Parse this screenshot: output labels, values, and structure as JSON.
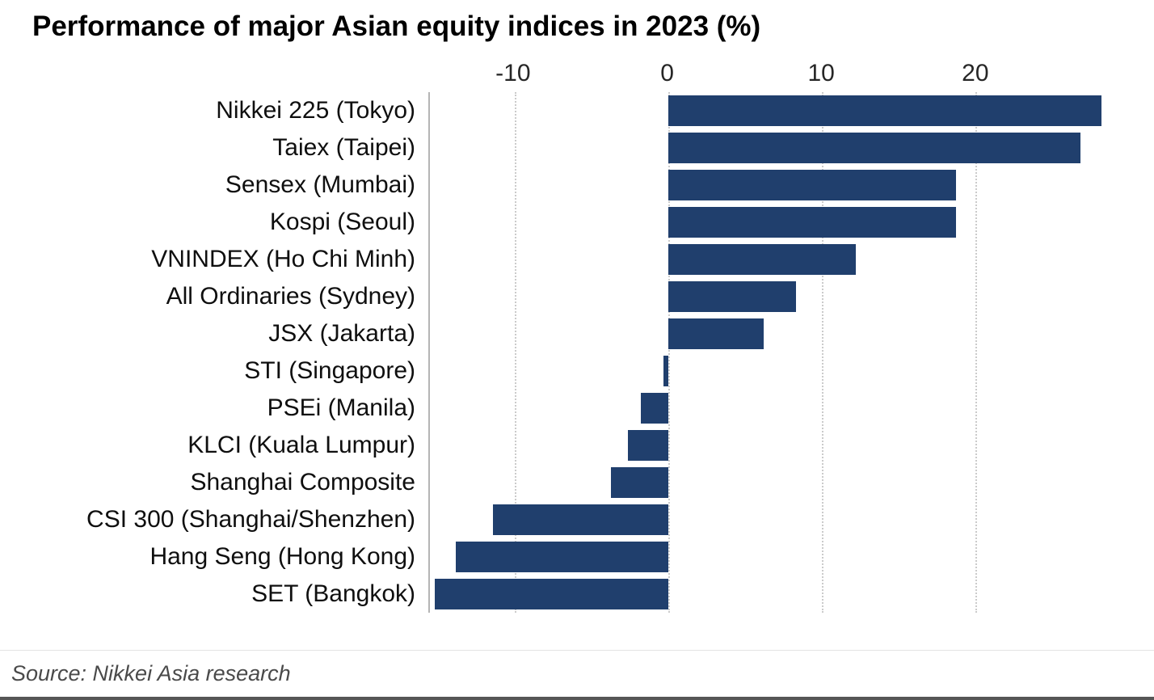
{
  "page": {
    "source": "Source: Nikkei Asia research"
  },
  "chart_data": {
    "type": "bar",
    "orientation": "horizontal",
    "title": "Performance of major Asian equity indices in 2023 (%)",
    "xlabel": "",
    "ylabel": "",
    "x_ticks": [
      -10,
      0,
      10,
      20
    ],
    "xlim": [
      -15.5,
      29.5
    ],
    "grid": "vertical-dotted",
    "legend": "none",
    "bar_color": "#203f6d",
    "axis_line_color": "#b5b5b5",
    "gridline_color": "#cbcbcb",
    "categories": [
      "Nikkei 225 (Tokyo)",
      "Taiex (Taipei)",
      "Sensex (Mumbai)",
      "Kospi (Seoul)",
      "VNINDEX (Ho Chi Minh)",
      "All Ordinaries (Sydney)",
      "JSX (Jakarta)",
      "STI (Singapore)",
      "PSEi (Manila)",
      "KLCI (Kuala Lumpur)",
      "Shanghai Composite",
      "CSI 300 (Shanghai/Shenzhen)",
      "Hang Seng (Hong Kong)",
      "SET (Bangkok)"
    ],
    "values": [
      28.2,
      26.8,
      18.7,
      18.7,
      12.2,
      8.3,
      6.2,
      -0.3,
      -1.8,
      -2.6,
      -3.7,
      -11.4,
      -13.8,
      -15.2
    ]
  }
}
